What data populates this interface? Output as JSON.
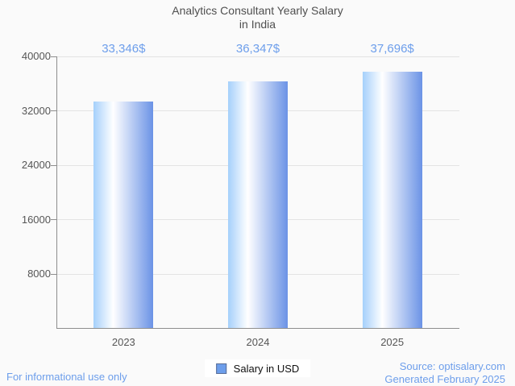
{
  "title": {
    "line1": "Analytics Consultant Yearly Salary",
    "line2": "in India"
  },
  "legend": {
    "label": "Salary in USD",
    "swatch_icon": "legend-swatch-icon",
    "swatch_color": "#6d9eeb"
  },
  "footer": {
    "disclaimer": "For informational use only",
    "source_line1": "Source: optisalary.com",
    "source_line2": "Generated February 2025"
  },
  "colors": {
    "accent_blue": "#6d9eeb",
    "bar_gradient_left": "#a5d0fb",
    "bar_gradient_mid": "#ffffff",
    "bar_gradient_right": "#6b93e6",
    "axis": "#8e8e8e",
    "gridline": "#e3e3e3",
    "text_gray": "#565656",
    "background": "#fafafa"
  },
  "chart_data": {
    "type": "bar",
    "title": "Analytics Consultant Yearly Salary in India",
    "categories": [
      "2023",
      "2024",
      "2025"
    ],
    "series": [
      {
        "name": "Salary in USD",
        "values": [
          33346,
          36347,
          37696
        ]
      }
    ],
    "value_labels": [
      "33,346$",
      "36,347$",
      "37,696$"
    ],
    "xlabel": "",
    "ylabel": "",
    "ylim": [
      0,
      40000
    ],
    "yticks": [
      8000,
      16000,
      24000,
      32000,
      40000
    ],
    "grid": true,
    "legend_position": "bottom"
  }
}
